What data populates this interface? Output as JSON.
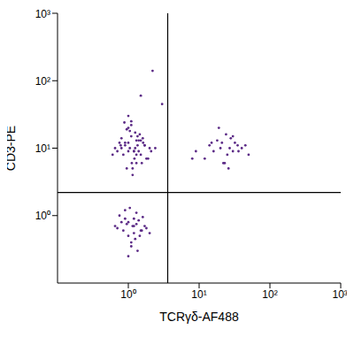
{
  "chart_data": {
    "type": "scatter",
    "x_label": "TCRγδ-AF488",
    "y_label": "CD3-PE",
    "color": "#5b2a86",
    "log": true,
    "grid": false,
    "xlim": [
      0.1,
      1000
    ],
    "ylim": [
      0.1,
      1000
    ],
    "xticks": [
      {
        "value": 1,
        "label": "10⁰"
      },
      {
        "value": 10,
        "label": "10¹"
      },
      {
        "value": 100,
        "label": "10²"
      },
      {
        "value": 1000,
        "label": "10³"
      }
    ],
    "yticks": [
      {
        "value": 1,
        "label": "10⁰"
      },
      {
        "value": 10,
        "label": "10¹"
      },
      {
        "value": 100,
        "label": "10²"
      },
      {
        "value": 1000,
        "label": "10³"
      }
    ],
    "gate_lines": {
      "x": 3.6,
      "y": 2.2
    },
    "x": [
      1.2,
      0.9,
      1.5,
      1.1,
      0.8,
      1.3,
      1.7,
      1.0,
      0.7,
      1.4,
      1.9,
      1.1,
      0.95,
      1.25,
      1.6,
      0.85,
      1.05,
      1.35,
      2.1,
      0.75,
      1.15,
      1.45,
      0.65,
      1.8,
      1.0,
      1.2,
      1.3,
      0.9,
      1.55,
      1.1,
      2.4,
      0.6,
      1.25,
      1.0,
      1.4,
      0.8,
      1.15,
      1.7,
      0.95,
      1.3,
      1.05,
      1.5,
      0.88,
      1.22,
      1.62,
      1.0,
      1.35,
      0.78,
      1.12,
      2.0,
      2.2,
      1.5,
      3.0,
      1.2,
      0.9,
      1.5,
      1.0,
      0.8,
      1.3,
      1.7,
      1.1,
      0.7,
      1.4,
      2.0,
      1.05,
      0.95,
      1.25,
      1.6,
      0.85,
      1.15,
      1.35,
      0.75,
      1.0,
      1.45,
      1.2,
      0.65,
      1.8,
      1.1,
      0.9,
      1.3,
      1.55,
      1.0,
      1.2,
      20,
      25,
      15,
      30,
      35,
      12,
      28,
      22,
      40,
      18,
      9,
      26,
      32,
      14,
      24,
      50,
      19,
      27,
      8,
      36,
      21,
      23,
      30,
      16,
      45
    ],
    "values": [
      9,
      12,
      8,
      15,
      10,
      6,
      11,
      20,
      9,
      13,
      7,
      25,
      5,
      10,
      14,
      8,
      18,
      11,
      9,
      12,
      4,
      16,
      10,
      7,
      30,
      9,
      13,
      11,
      6,
      22,
      10,
      8,
      17,
      12,
      9,
      14,
      5,
      11,
      19,
      8,
      10,
      13,
      24,
      7,
      12,
      9,
      15,
      11,
      6,
      10,
      140,
      60,
      45,
      0.7,
      0.9,
      0.6,
      0.5,
      0.8,
      1.1,
      0.7,
      0.4,
      0.65,
      0.85,
      0.55,
      1.3,
      0.75,
      0.45,
      0.95,
      0.6,
      0.7,
      0.3,
      1.0,
      0.8,
      0.5,
      0.9,
      0.7,
      0.65,
      0.35,
      1.2,
      0.75,
      0.6,
      0.25,
      0.55,
      10,
      8,
      12,
      9,
      11,
      7,
      14,
      6,
      10,
      13,
      9,
      5,
      12,
      11,
      16,
      8,
      20,
      10,
      7,
      9,
      12,
      6,
      15,
      9,
      11
    ]
  }
}
